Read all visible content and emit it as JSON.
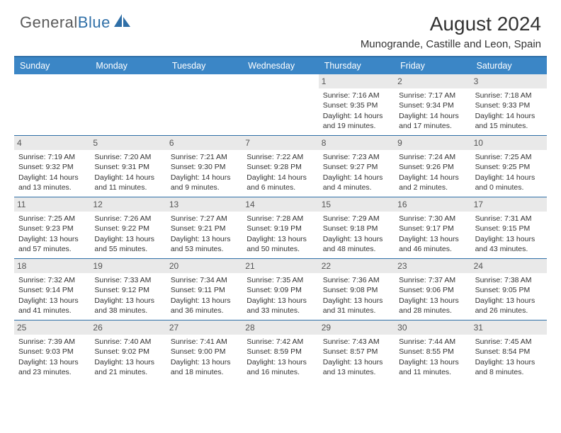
{
  "brand": {
    "part1": "General",
    "part2": "Blue"
  },
  "title": "August 2024",
  "location": "Munogrande, Castille and Leon, Spain",
  "colors": {
    "header_bg": "#3b86c6",
    "rule": "#2f6fa7",
    "daynum_bg": "#e9e9e9",
    "text": "#333333",
    "logo_gray": "#5a5a5a",
    "logo_blue": "#2f6fa7"
  },
  "dayNames": [
    "Sunday",
    "Monday",
    "Tuesday",
    "Wednesday",
    "Thursday",
    "Friday",
    "Saturday"
  ],
  "weeks": [
    [
      null,
      null,
      null,
      null,
      {
        "n": "1",
        "sr": "7:16 AM",
        "ss": "9:35 PM",
        "dl": "14 hours and 19 minutes."
      },
      {
        "n": "2",
        "sr": "7:17 AM",
        "ss": "9:34 PM",
        "dl": "14 hours and 17 minutes."
      },
      {
        "n": "3",
        "sr": "7:18 AM",
        "ss": "9:33 PM",
        "dl": "14 hours and 15 minutes."
      }
    ],
    [
      {
        "n": "4",
        "sr": "7:19 AM",
        "ss": "9:32 PM",
        "dl": "14 hours and 13 minutes."
      },
      {
        "n": "5",
        "sr": "7:20 AM",
        "ss": "9:31 PM",
        "dl": "14 hours and 11 minutes."
      },
      {
        "n": "6",
        "sr": "7:21 AM",
        "ss": "9:30 PM",
        "dl": "14 hours and 9 minutes."
      },
      {
        "n": "7",
        "sr": "7:22 AM",
        "ss": "9:28 PM",
        "dl": "14 hours and 6 minutes."
      },
      {
        "n": "8",
        "sr": "7:23 AM",
        "ss": "9:27 PM",
        "dl": "14 hours and 4 minutes."
      },
      {
        "n": "9",
        "sr": "7:24 AM",
        "ss": "9:26 PM",
        "dl": "14 hours and 2 minutes."
      },
      {
        "n": "10",
        "sr": "7:25 AM",
        "ss": "9:25 PM",
        "dl": "14 hours and 0 minutes."
      }
    ],
    [
      {
        "n": "11",
        "sr": "7:25 AM",
        "ss": "9:23 PM",
        "dl": "13 hours and 57 minutes."
      },
      {
        "n": "12",
        "sr": "7:26 AM",
        "ss": "9:22 PM",
        "dl": "13 hours and 55 minutes."
      },
      {
        "n": "13",
        "sr": "7:27 AM",
        "ss": "9:21 PM",
        "dl": "13 hours and 53 minutes."
      },
      {
        "n": "14",
        "sr": "7:28 AM",
        "ss": "9:19 PM",
        "dl": "13 hours and 50 minutes."
      },
      {
        "n": "15",
        "sr": "7:29 AM",
        "ss": "9:18 PM",
        "dl": "13 hours and 48 minutes."
      },
      {
        "n": "16",
        "sr": "7:30 AM",
        "ss": "9:17 PM",
        "dl": "13 hours and 46 minutes."
      },
      {
        "n": "17",
        "sr": "7:31 AM",
        "ss": "9:15 PM",
        "dl": "13 hours and 43 minutes."
      }
    ],
    [
      {
        "n": "18",
        "sr": "7:32 AM",
        "ss": "9:14 PM",
        "dl": "13 hours and 41 minutes."
      },
      {
        "n": "19",
        "sr": "7:33 AM",
        "ss": "9:12 PM",
        "dl": "13 hours and 38 minutes."
      },
      {
        "n": "20",
        "sr": "7:34 AM",
        "ss": "9:11 PM",
        "dl": "13 hours and 36 minutes."
      },
      {
        "n": "21",
        "sr": "7:35 AM",
        "ss": "9:09 PM",
        "dl": "13 hours and 33 minutes."
      },
      {
        "n": "22",
        "sr": "7:36 AM",
        "ss": "9:08 PM",
        "dl": "13 hours and 31 minutes."
      },
      {
        "n": "23",
        "sr": "7:37 AM",
        "ss": "9:06 PM",
        "dl": "13 hours and 28 minutes."
      },
      {
        "n": "24",
        "sr": "7:38 AM",
        "ss": "9:05 PM",
        "dl": "13 hours and 26 minutes."
      }
    ],
    [
      {
        "n": "25",
        "sr": "7:39 AM",
        "ss": "9:03 PM",
        "dl": "13 hours and 23 minutes."
      },
      {
        "n": "26",
        "sr": "7:40 AM",
        "ss": "9:02 PM",
        "dl": "13 hours and 21 minutes."
      },
      {
        "n": "27",
        "sr": "7:41 AM",
        "ss": "9:00 PM",
        "dl": "13 hours and 18 minutes."
      },
      {
        "n": "28",
        "sr": "7:42 AM",
        "ss": "8:59 PM",
        "dl": "13 hours and 16 minutes."
      },
      {
        "n": "29",
        "sr": "7:43 AM",
        "ss": "8:57 PM",
        "dl": "13 hours and 13 minutes."
      },
      {
        "n": "30",
        "sr": "7:44 AM",
        "ss": "8:55 PM",
        "dl": "13 hours and 11 minutes."
      },
      {
        "n": "31",
        "sr": "7:45 AM",
        "ss": "8:54 PM",
        "dl": "13 hours and 8 minutes."
      }
    ]
  ],
  "labels": {
    "sunrise": "Sunrise: ",
    "sunset": "Sunset: ",
    "daylight": "Daylight: "
  }
}
